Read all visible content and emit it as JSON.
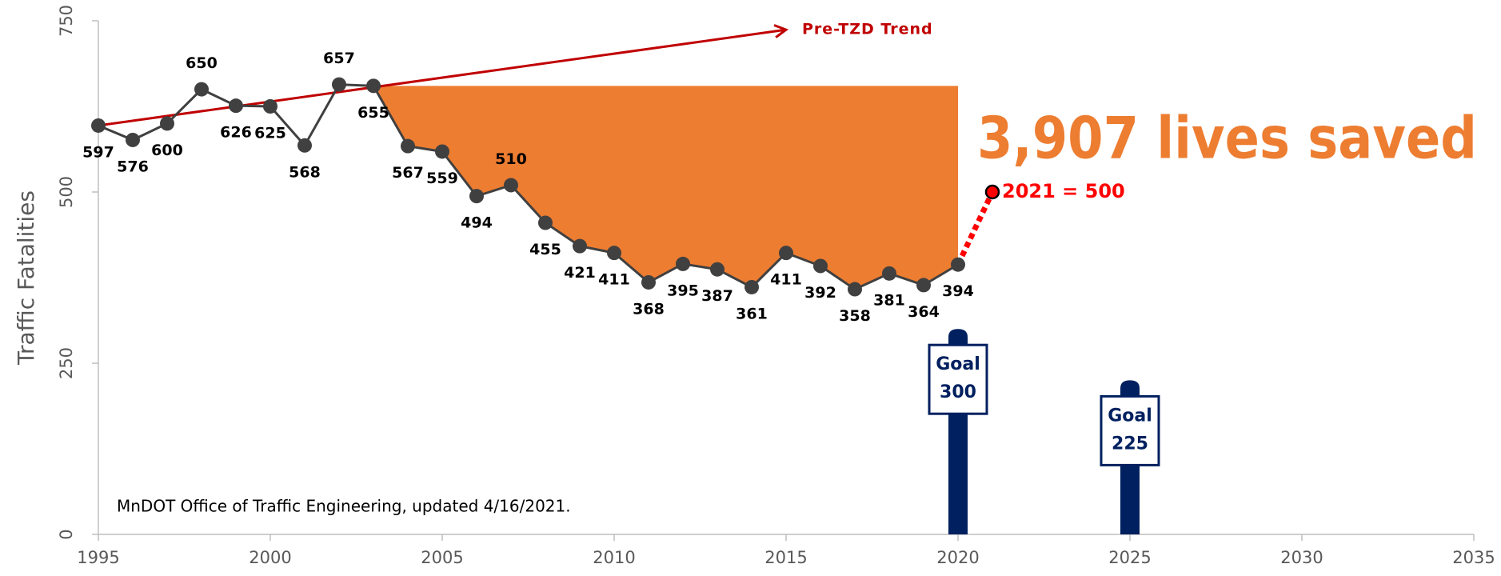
{
  "chart_data": {
    "type": "line",
    "y_label": "Traffic Fatalities",
    "source_note": "MnDOT Office of Traffic Engineering, updated 4/16/2021.",
    "xlim": [
      1995,
      2035
    ],
    "xticks": [
      1995,
      2000,
      2005,
      2010,
      2015,
      2020,
      2025,
      2030,
      2035
    ],
    "ylim": [
      0,
      750
    ],
    "yticks": [
      0,
      250,
      500,
      750
    ],
    "series": [
      {
        "color": "#404040",
        "x": [
          1995,
          1996,
          1997,
          1998,
          1999,
          2000,
          2001,
          2002,
          2003,
          2004,
          2005,
          2006,
          2007,
          2008,
          2009,
          2010,
          2011,
          2012,
          2013,
          2014,
          2015,
          2016,
          2017,
          2018,
          2019,
          2020
        ],
        "values": [
          597,
          576,
          600,
          650,
          626,
          625,
          568,
          657,
          655,
          567,
          559,
          494,
          510,
          455,
          421,
          411,
          368,
          395,
          387,
          361,
          411,
          392,
          358,
          381,
          364,
          394
        ]
      }
    ],
    "projection": {
      "color": "#ff0000",
      "x": [
        2021
      ],
      "values": [
        500
      ],
      "value_labels": [
        "2021 = 500"
      ]
    },
    "trend": {
      "name": "Pre-TZD Trend",
      "color": "#c00000",
      "x": [
        1995,
        2015
      ],
      "values": [
        597,
        737
      ]
    },
    "shaded": {
      "from": 2003,
      "to": 2020,
      "color": "#ed7d31",
      "label": "3,907 lives saved"
    },
    "goals": {
      "label": "Goal",
      "color": "#002060",
      "x": [
        2020,
        2025
      ],
      "values": [
        300,
        225
      ]
    }
  }
}
